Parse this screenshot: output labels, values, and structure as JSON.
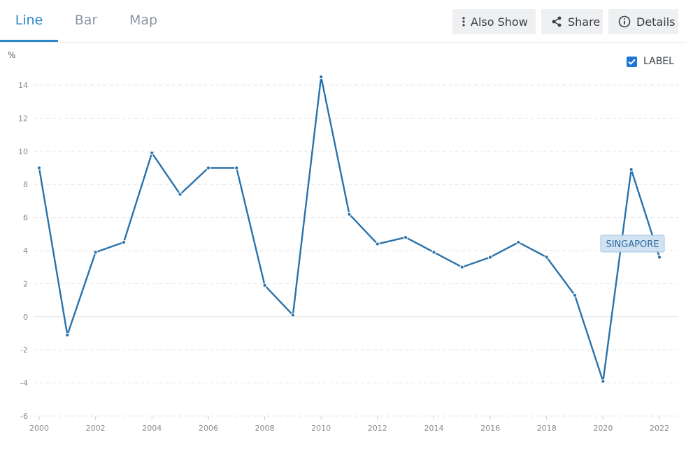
{
  "tabs": [
    {
      "label": "Line",
      "active": true
    },
    {
      "label": "Bar",
      "active": false
    },
    {
      "label": "Map",
      "active": false
    }
  ],
  "toolbar": {
    "also_show_label": "Also Show",
    "share_label": "Share",
    "details_label": "Details"
  },
  "label_toggle": {
    "label": "LABEL",
    "checked": true
  },
  "colors": {
    "accent": "#2e87c8",
    "line": "#2a72ab",
    "tag_bg": "#cfe2f3",
    "tag_border": "#9dc1e0",
    "tag_text": "#2e6a9f"
  },
  "chart_data": {
    "type": "line",
    "ylabel": "%",
    "xlim": [
      2000,
      2022
    ],
    "ylim": [
      -6,
      14
    ],
    "yticks": [
      "-6",
      "-4",
      "-2",
      "0",
      "2",
      "4",
      "6",
      "8",
      "10",
      "12",
      "14"
    ],
    "xticks": [
      "2000",
      "2002",
      "2004",
      "2006",
      "2008",
      "2010",
      "2012",
      "2014",
      "2016",
      "2018",
      "2020",
      "2022"
    ],
    "grid": true,
    "series": [
      {
        "name": "SINGAPORE",
        "x": [
          2000,
          2001,
          2002,
          2003,
          2004,
          2005,
          2006,
          2007,
          2008,
          2009,
          2010,
          2011,
          2012,
          2013,
          2014,
          2015,
          2016,
          2017,
          2018,
          2019,
          2020,
          2021,
          2022
        ],
        "values": [
          9.0,
          -1.1,
          3.9,
          4.5,
          9.9,
          7.4,
          9.0,
          9.0,
          1.9,
          0.1,
          14.5,
          6.2,
          4.4,
          4.8,
          3.9,
          3.0,
          3.6,
          4.5,
          3.6,
          1.3,
          -3.9,
          8.9,
          3.6
        ]
      }
    ]
  }
}
